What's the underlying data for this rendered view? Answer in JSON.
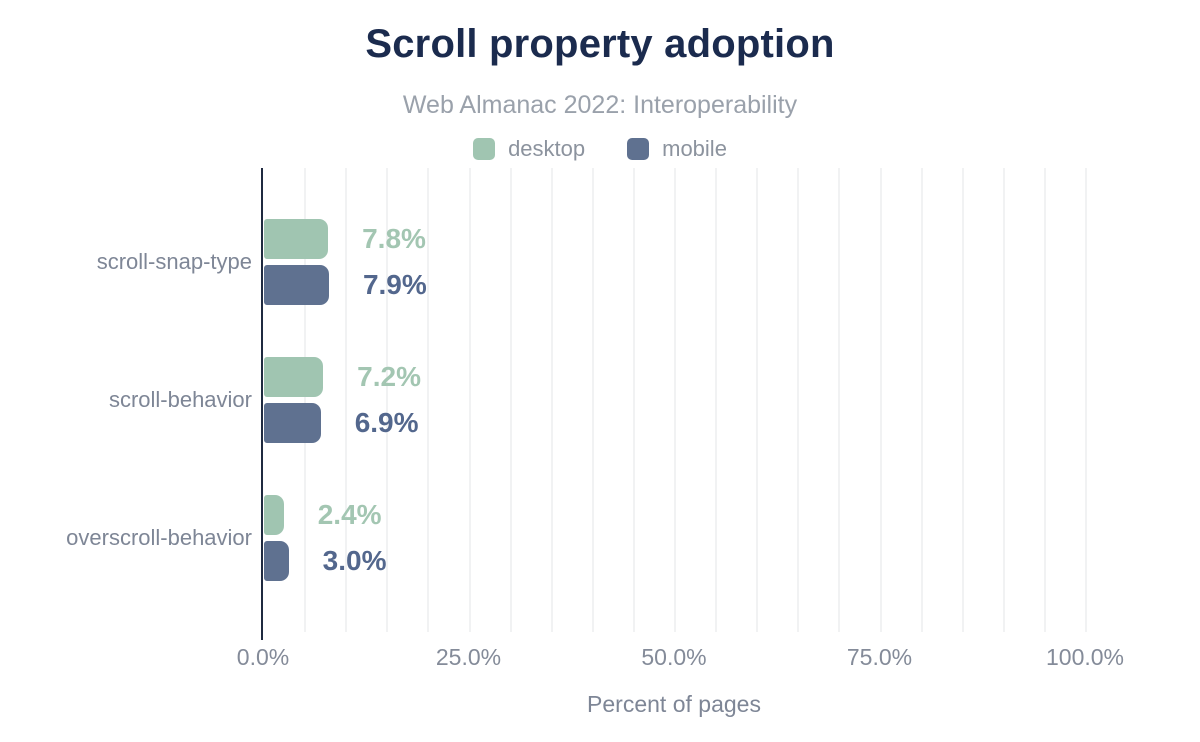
{
  "header": {
    "title": "Scroll property adoption",
    "subtitle": "Web Almanac 2022: Interoperability"
  },
  "chart_data": {
    "type": "bar",
    "orientation": "horizontal",
    "title": "Scroll property adoption",
    "subtitle": "Web Almanac 2022: Interoperability",
    "categories": [
      "scroll-snap-type",
      "scroll-behavior",
      "overscroll-behavior"
    ],
    "series": [
      {
        "name": "desktop",
        "color": "#a0c5b1",
        "label_color": "#a3c6b2",
        "values": [
          7.8,
          7.2,
          2.4
        ]
      },
      {
        "name": "mobile",
        "color": "#5f7190",
        "label_color": "#53678d",
        "values": [
          7.9,
          6.9,
          3.0
        ]
      }
    ],
    "value_labels": [
      [
        "7.8%",
        "7.2%",
        "2.4%"
      ],
      [
        "7.9%",
        "6.9%",
        "3.0%"
      ]
    ],
    "xlabel": "Percent of pages",
    "ylabel": "",
    "xlim": [
      0,
      100
    ],
    "x_ticks": [
      "0.0%",
      "25.0%",
      "50.0%",
      "75.0%",
      "100.0%"
    ],
    "x_tick_values": [
      0,
      25,
      50,
      75,
      100
    ],
    "grid_interval": 5,
    "grid": "vertical-minor",
    "legend_position": "top"
  },
  "colors": {
    "title": "#1b2b4e",
    "subtitle": "#9aa1ab",
    "legend_text": "#8c939e",
    "category_label": "#7e8696",
    "tick_label": "#848b99",
    "axis_line": "#1f2a40",
    "gridline": "#f1f2f3",
    "background": "#ffffff"
  }
}
